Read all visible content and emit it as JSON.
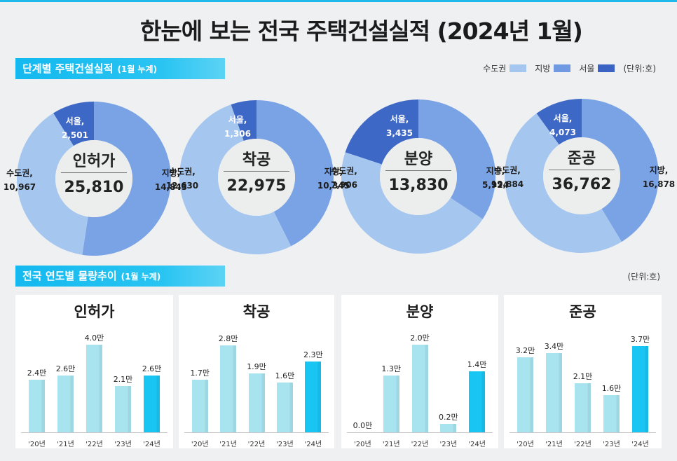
{
  "title": "한눈에 보는 전국 주택건설실적 (2024년 1월)",
  "section1": {
    "title": "단계별 주택건설실적",
    "subtitle": "(1월 누계)"
  },
  "section2": {
    "title": "전국 연도별 물량추이",
    "subtitle": "(1월 누계)",
    "unit": "(단위:호)"
  },
  "legend": {
    "items": [
      {
        "label": "수도권",
        "color": "#a5c6ef"
      },
      {
        "label": "지방",
        "color": "#6f9ae3"
      },
      {
        "label": "서울",
        "color": "#3a63c3"
      }
    ],
    "unit": "(단위:호)"
  },
  "colors": {
    "capital": "#a5c6ef",
    "region": "#7aa3e6",
    "seoul": "#3e68c6",
    "bar_light": "#a8e4ef",
    "bar_highlight": "#18c5f3"
  },
  "chart_data": [
    {
      "type": "pie",
      "title": "인허가",
      "total": "25,810",
      "slices": [
        {
          "name": "서울,",
          "value": 2501,
          "label": "2,501"
        },
        {
          "name": "지방,",
          "value": 14843,
          "label": "14,843"
        },
        {
          "name": "수도권,",
          "value": 10967,
          "label": "10,967"
        }
      ]
    },
    {
      "type": "pie",
      "title": "착공",
      "total": "22,975",
      "slices": [
        {
          "name": "서울,",
          "value": 1306,
          "label": "1,306"
        },
        {
          "name": "지방,",
          "value": 10345,
          "label": "10,345"
        },
        {
          "name": "수도권,",
          "value": 12630,
          "label": "12,630"
        }
      ]
    },
    {
      "type": "pie",
      "title": "분양",
      "total": "13,830",
      "slices": [
        {
          "name": "서울,",
          "value": 3435,
          "label": "3,435"
        },
        {
          "name": "지방,",
          "value": 5924,
          "label": "5,924"
        },
        {
          "name": "수도권,",
          "value": 7906,
          "label": "7,906"
        }
      ]
    },
    {
      "type": "pie",
      "title": "준공",
      "total": "36,762",
      "slices": [
        {
          "name": "서울,",
          "value": 4073,
          "label": "4,073"
        },
        {
          "name": "지방,",
          "value": 16878,
          "label": "16,878"
        },
        {
          "name": "수도권,",
          "value": 19884,
          "label": "19,884"
        }
      ]
    },
    {
      "type": "bar",
      "title": "인허가",
      "categories": [
        "'20년",
        "'21년",
        "'22년",
        "'23년",
        "'24년"
      ],
      "values": [
        2.4,
        2.6,
        4.0,
        2.1,
        2.6
      ],
      "value_labels": [
        "2.4만",
        "2.6만",
        "4.0만",
        "2.1만",
        "2.6만"
      ],
      "highlight_index": 4,
      "ylim": [
        0,
        4.8
      ]
    },
    {
      "type": "bar",
      "title": "착공",
      "categories": [
        "'20년",
        "'21년",
        "'22년",
        "'23년",
        "'24년"
      ],
      "values": [
        1.7,
        2.8,
        1.9,
        1.6,
        2.3
      ],
      "value_labels": [
        "1.7만",
        "2.8만",
        "1.9만",
        "1.6만",
        "2.3만"
      ],
      "highlight_index": 4,
      "ylim": [
        0,
        3.4
      ]
    },
    {
      "type": "bar",
      "title": "분양",
      "categories": [
        "'20년",
        "'21년",
        "'22년",
        "'23년",
        "'24년"
      ],
      "values": [
        0.0,
        1.3,
        2.0,
        0.2,
        1.4
      ],
      "value_labels": [
        "0.0만",
        "1.3만",
        "2.0만",
        "0.2만",
        "1.4만"
      ],
      "highlight_index": 4,
      "ylim": [
        0,
        2.4
      ]
    },
    {
      "type": "bar",
      "title": "준공",
      "categories": [
        "'20년",
        "'21년",
        "'22년",
        "'23년",
        "'24년"
      ],
      "values": [
        3.2,
        3.4,
        2.1,
        1.6,
        3.7
      ],
      "value_labels": [
        "3.2만",
        "3.4만",
        "2.1만",
        "1.6만",
        "3.7만"
      ],
      "highlight_index": 4,
      "ylim": [
        0,
        4.5
      ]
    }
  ]
}
